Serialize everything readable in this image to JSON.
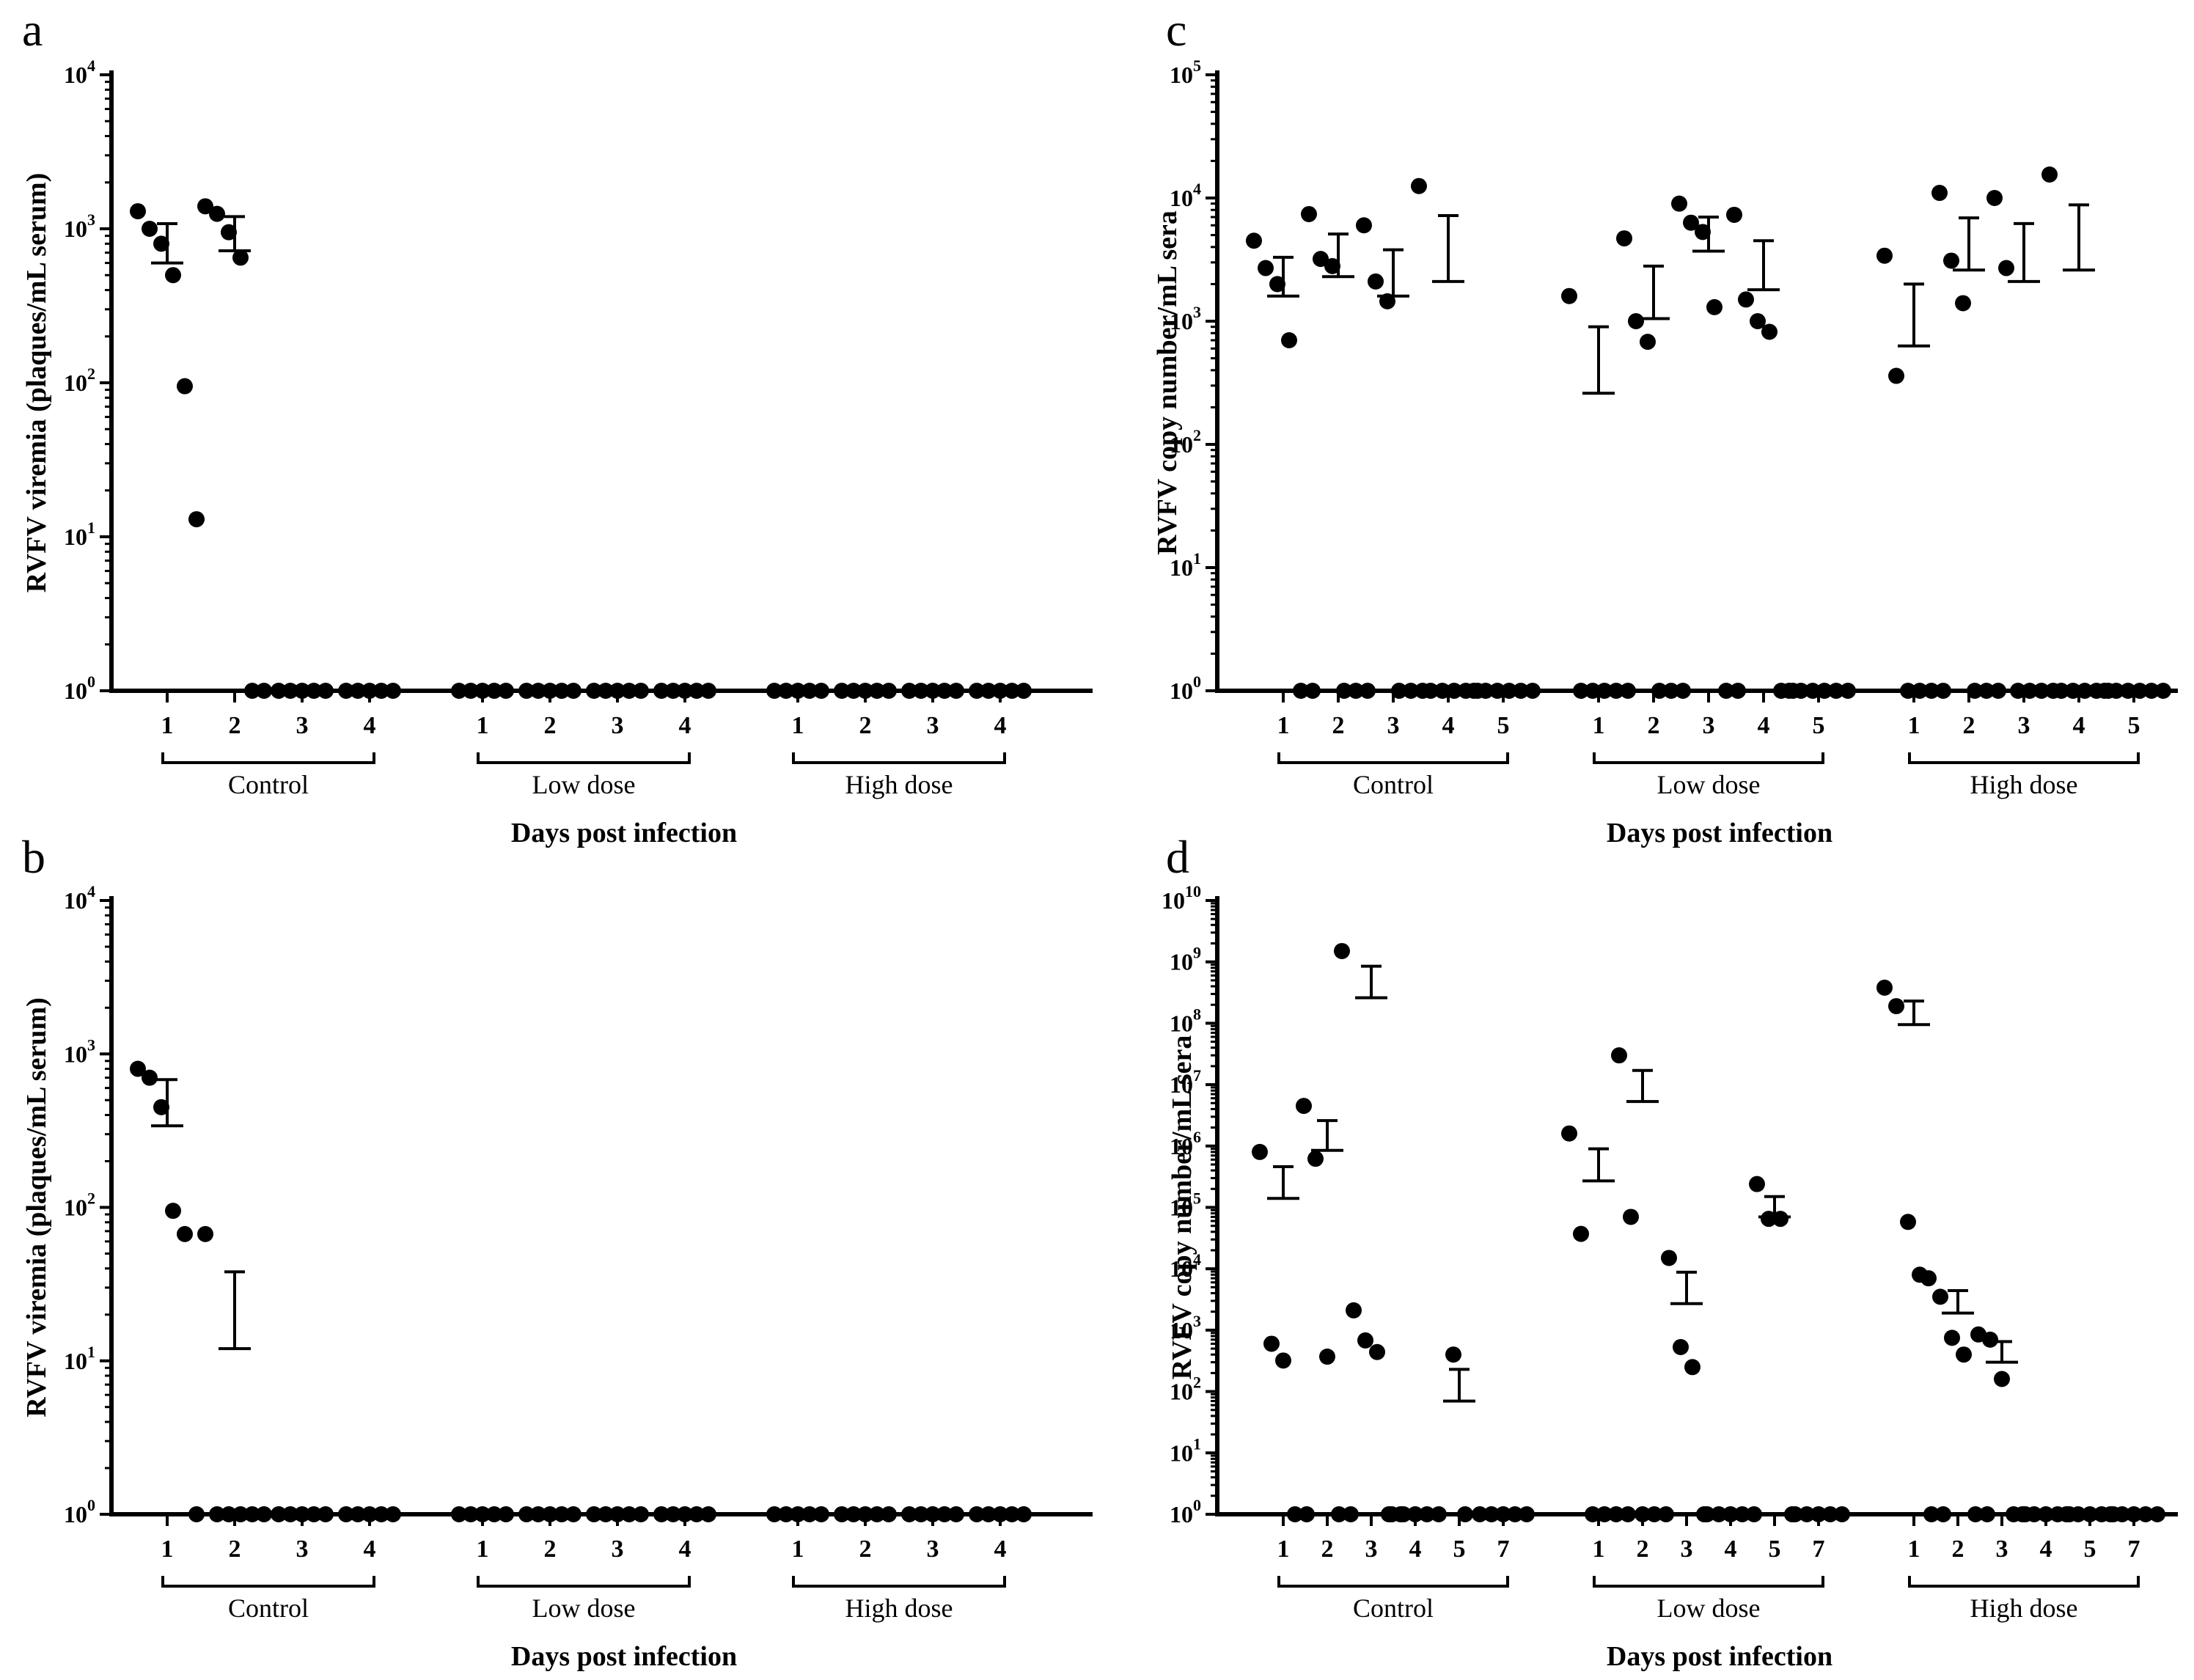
{
  "figure": {
    "x_title": "Days post infection"
  },
  "chart_data": [
    {
      "panel": "a",
      "type": "scatter",
      "scale": "log",
      "ylabel": "RVFV viremia (plaques/mL serum)",
      "xlabel": "Days post infection",
      "y_exponents": [
        0,
        1,
        2,
        3,
        4
      ],
      "groups": [
        {
          "name": "Control",
          "categories": [
            {
              "label": "1",
              "points": [
                1300,
                1000,
                800,
                500,
                95,
                13
              ],
              "mean": 600,
              "err": 1080
            },
            {
              "label": "2",
              "points": [
                1400,
                1250,
                950,
                650,
                1,
                1
              ],
              "mean": 720,
              "err": 1200
            },
            {
              "label": "3",
              "points": [
                1,
                1,
                1,
                1,
                1
              ],
              "mean": null,
              "err": null
            },
            {
              "label": "4",
              "points": [
                1,
                1,
                1,
                1,
                1
              ],
              "mean": null,
              "err": null
            }
          ]
        },
        {
          "name": "Low dose",
          "categories": [
            {
              "label": "1",
              "points": [
                1,
                1,
                1,
                1,
                1
              ]
            },
            {
              "label": "2",
              "points": [
                1,
                1,
                1,
                1,
                1
              ]
            },
            {
              "label": "3",
              "points": [
                1,
                1,
                1,
                1,
                1
              ]
            },
            {
              "label": "4",
              "points": [
                1,
                1,
                1,
                1,
                1
              ]
            }
          ]
        },
        {
          "name": "High dose",
          "categories": [
            {
              "label": "1",
              "points": [
                1,
                1,
                1,
                1,
                1
              ]
            },
            {
              "label": "2",
              "points": [
                1,
                1,
                1,
                1,
                1
              ]
            },
            {
              "label": "3",
              "points": [
                1,
                1,
                1,
                1,
                1
              ]
            },
            {
              "label": "4",
              "points": [
                1,
                1,
                1,
                1,
                1
              ]
            }
          ]
        }
      ]
    },
    {
      "panel": "b",
      "type": "scatter",
      "scale": "log",
      "ylabel": "RVFV viremia (plaques/mL serum)",
      "xlabel": "Days post infection",
      "y_exponents": [
        0,
        1,
        2,
        3,
        4
      ],
      "groups": [
        {
          "name": "Control",
          "categories": [
            {
              "label": "1",
              "points": [
                800,
                700,
                450,
                95,
                67,
                1
              ],
              "mean": 340,
              "err": 680
            },
            {
              "label": "2",
              "points": [
                67,
                1,
                1,
                1,
                1,
                1
              ],
              "mean": 12,
              "err": 38
            },
            {
              "label": "3",
              "points": [
                1,
                1,
                1,
                1,
                1
              ]
            },
            {
              "label": "4",
              "points": [
                1,
                1,
                1,
                1,
                1
              ]
            }
          ]
        },
        {
          "name": "Low dose",
          "categories": [
            {
              "label": "1",
              "points": [
                1,
                1,
                1,
                1,
                1
              ]
            },
            {
              "label": "2",
              "points": [
                1,
                1,
                1,
                1,
                1
              ]
            },
            {
              "label": "3",
              "points": [
                1,
                1,
                1,
                1,
                1
              ]
            },
            {
              "label": "4",
              "points": [
                1,
                1,
                1,
                1,
                1
              ]
            }
          ]
        },
        {
          "name": "High dose",
          "categories": [
            {
              "label": "1",
              "points": [
                1,
                1,
                1,
                1,
                1
              ]
            },
            {
              "label": "2",
              "points": [
                1,
                1,
                1,
                1,
                1
              ]
            },
            {
              "label": "3",
              "points": [
                1,
                1,
                1,
                1,
                1
              ]
            },
            {
              "label": "4",
              "points": [
                1,
                1,
                1,
                1,
                1
              ]
            }
          ]
        }
      ]
    },
    {
      "panel": "c",
      "type": "scatter",
      "scale": "log",
      "ylabel": "RVFV copy number/mL sera",
      "xlabel": "Days post infection",
      "y_exponents": [
        0,
        1,
        2,
        3,
        4,
        5
      ],
      "groups": [
        {
          "name": "Control",
          "categories": [
            {
              "label": "1",
              "points": [
                4500,
                2700,
                2000,
                700,
                1,
                1
              ],
              "mean": 1600,
              "err": 3300
            },
            {
              "label": "2",
              "points": [
                7400,
                3200,
                2800,
                1,
                1,
                1
              ],
              "mean": 2300,
              "err": 5100
            },
            {
              "label": "3",
              "points": [
                6000,
                2100,
                1450,
                1,
                1,
                1
              ],
              "mean": 1600,
              "err": 3800
            },
            {
              "label": "4",
              "points": [
                12500,
                1,
                1,
                1,
                1,
                1
              ],
              "mean": 2100,
              "err": 7200
            },
            {
              "label": "5",
              "points": [
                1,
                1,
                1,
                1,
                1,
                1
              ]
            }
          ]
        },
        {
          "name": "Low dose",
          "categories": [
            {
              "label": "1",
              "points": [
                1600,
                1,
                1,
                1,
                1,
                1
              ],
              "mean": 260,
              "err": 900
            },
            {
              "label": "2",
              "points": [
                4700,
                1000,
                680,
                1,
                1,
                1
              ],
              "mean": 1050,
              "err": 2800
            },
            {
              "label": "3",
              "points": [
                9000,
                6300,
                5300,
                1300,
                1,
                1
              ],
              "mean": 3700,
              "err": 7000
            },
            {
              "label": "4",
              "points": [
                7300,
                1500,
                1000,
                820,
                1,
                1
              ],
              "mean": 1800,
              "err": 4500
            },
            {
              "label": "5",
              "points": [
                1,
                1,
                1,
                1,
                1,
                1
              ]
            }
          ]
        },
        {
          "name": "High dose",
          "categories": [
            {
              "label": "1",
              "points": [
                3400,
                360,
                1,
                1,
                1,
                1
              ],
              "mean": 630,
              "err": 2000
            },
            {
              "label": "2",
              "points": [
                11000,
                3100,
                1400,
                1,
                1,
                1
              ],
              "mean": 2600,
              "err": 6900
            },
            {
              "label": "3",
              "points": [
                10000,
                2700,
                1,
                1,
                1,
                1
              ],
              "mean": 2100,
              "err": 6200
            },
            {
              "label": "4",
              "points": [
                15500,
                1,
                1,
                1,
                1,
                1
              ],
              "mean": 2600,
              "err": 8800
            },
            {
              "label": "5",
              "points": [
                1,
                1,
                1,
                1,
                1,
                1
              ]
            }
          ]
        }
      ]
    },
    {
      "panel": "d",
      "type": "scatter",
      "scale": "log",
      "ylabel": "RVFV copy number/mL sera",
      "xlabel": "Days post infection",
      "y_exponents": [
        0,
        1,
        2,
        3,
        4,
        5,
        6,
        7,
        8,
        9,
        10
      ],
      "groups": [
        {
          "name": "Control",
          "categories": [
            {
              "label": "1",
              "points": [
                800000,
                600,
                320,
                1,
                1
              ],
              "mean": 140000,
              "err": 460000
            },
            {
              "label": "2",
              "points": [
                4500000,
                620000,
                370,
                1,
                1
              ],
              "mean": 850000,
              "err": 2600000
            },
            {
              "label": "3",
              "points": [
                1500000000,
                2100,
                680,
                440,
                1,
                1
              ],
              "mean": 260000000,
              "err": 850000000
            },
            {
              "label": "4",
              "points": [
                1,
                1,
                1,
                1,
                1
              ]
            },
            {
              "label": "5",
              "points": [
                400,
                1
              ],
              "mean": 70,
              "err": 230
            },
            {
              "label": "7",
              "points": [
                1,
                1,
                1,
                1,
                1
              ]
            }
          ]
        },
        {
          "name": "Low dose",
          "categories": [
            {
              "label": "1",
              "points": [
                1600000,
                37000,
                1,
                1,
                1,
                1
              ],
              "mean": 270000,
              "err": 900000
            },
            {
              "label": "2",
              "points": [
                30000000,
                70000,
                1,
                1,
                1
              ],
              "mean": 5300000,
              "err": 17000000
            },
            {
              "label": "3",
              "points": [
                15000,
                530,
                250,
                1
              ],
              "mean": 2700,
              "err": 8800
            },
            {
              "label": "4",
              "points": [
                1,
                1,
                1,
                1,
                1
              ]
            },
            {
              "label": "5",
              "points": [
                240000,
                65000,
                65000,
                1
              ],
              "mean": 70000,
              "err": 150000
            },
            {
              "label": "7",
              "points": [
                1,
                1,
                1,
                1,
                1
              ]
            }
          ]
        },
        {
          "name": "High dose",
          "categories": [
            {
              "label": "1",
              "points": [
                380000000,
                190000000,
                58000,
                8000,
                1,
                1
              ],
              "mean": 95000000,
              "err": 230000000
            },
            {
              "label": "2",
              "points": [
                7000,
                3500,
                750,
                400,
                1,
                1
              ],
              "mean": 1900,
              "err": 4400
            },
            {
              "label": "3",
              "points": [
                850,
                700,
                160,
                1,
                1
              ],
              "mean": 300,
              "err": 650
            },
            {
              "label": "4",
              "points": [
                1,
                1,
                1,
                1,
                1
              ]
            },
            {
              "label": "5",
              "points": [
                1,
                1,
                1,
                1,
                1
              ]
            },
            {
              "label": "7",
              "points": [
                1,
                1,
                1,
                1,
                1
              ]
            }
          ]
        }
      ]
    }
  ]
}
